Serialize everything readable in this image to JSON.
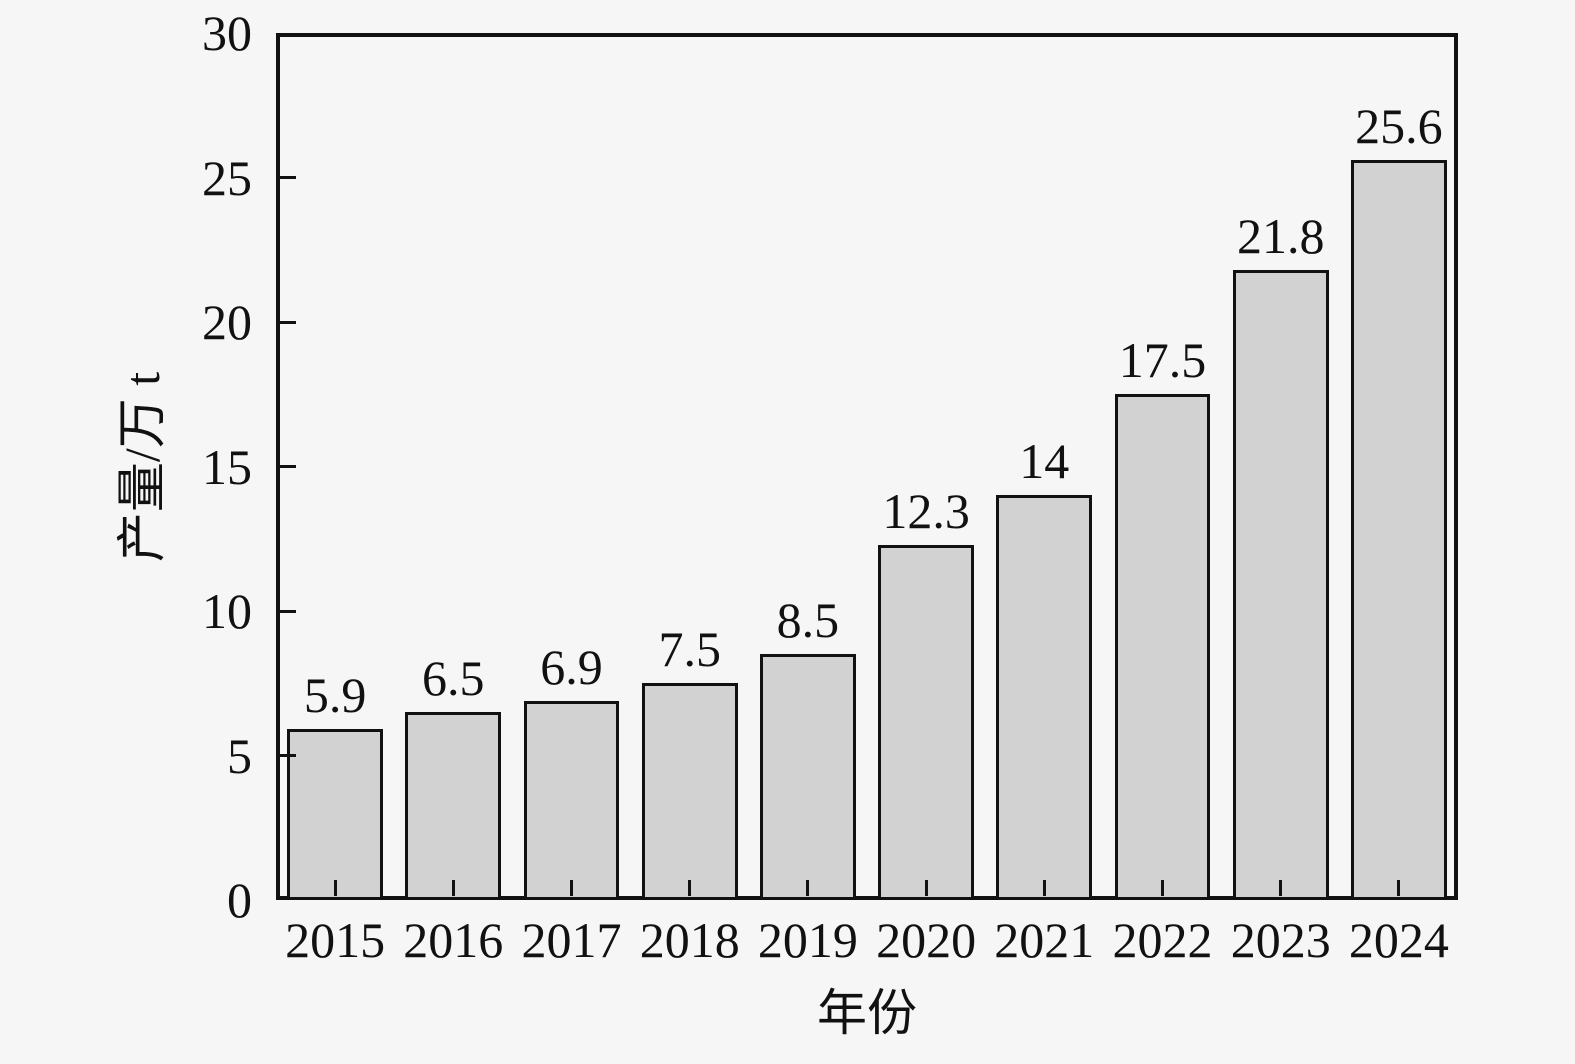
{
  "chart_data": {
    "type": "bar",
    "title": "",
    "xlabel": "年份",
    "ylabel": "产量/万 t",
    "categories": [
      "2015",
      "2016",
      "2017",
      "2018",
      "2019",
      "2020",
      "2021",
      "2022",
      "2023",
      "2024"
    ],
    "values": [
      5.9,
      6.5,
      6.9,
      7.5,
      8.5,
      12.3,
      14,
      17.5,
      21.8,
      25.6
    ],
    "value_labels": [
      "5.9",
      "6.5",
      "6.9",
      "7.5",
      "8.5",
      "12.3",
      "14",
      "17.5",
      "21.8",
      "25.6"
    ],
    "ylim": [
      0,
      30
    ],
    "yticks": [
      0,
      5,
      10,
      15,
      20,
      25,
      30
    ],
    "grid": false,
    "legend": "none",
    "colors": {
      "bar_fill": "#d2d2d2",
      "bar_border": "#111111",
      "frame": "#111111",
      "background": "#f6f6f6",
      "text": "#111111"
    }
  }
}
